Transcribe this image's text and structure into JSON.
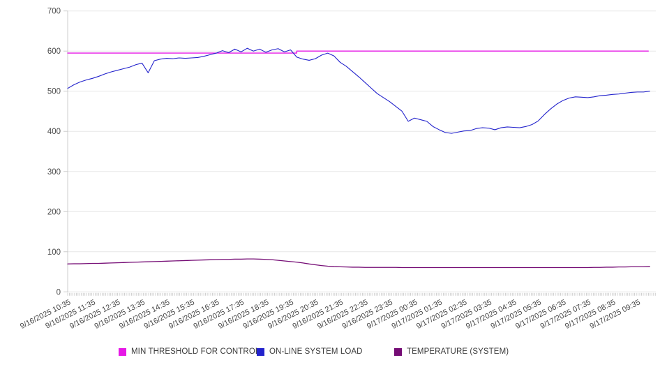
{
  "legend": {
    "threshold_label": "MIN THRESHOLD FOR CONTROL",
    "load_label": "ON-LINE SYSTEM LOAD",
    "temperature_label": "TEMPERATURE (SYSTEM)"
  },
  "colors": {
    "threshold": "#e618e6",
    "load": "#2222cc",
    "temperature": "#750c75",
    "gridline": "#e7e7e7",
    "axis_line": "#cccccc",
    "minor_tick": "#c6c6c6",
    "tick_text": "#4a4a4a"
  },
  "chart_data": {
    "type": "line",
    "title": "",
    "xlabel": "",
    "ylabel": "",
    "ylim": [
      0,
      700
    ],
    "grid": "horizontal",
    "legend_position": "bottom",
    "y_ticks": [
      0,
      100,
      200,
      300,
      400,
      500,
      600,
      700
    ],
    "x_ticks": [
      "9/16/2025 10:35",
      "9/16/2025 11:35",
      "9/16/2025 12:35",
      "9/16/2025 13:35",
      "9/16/2025 14:35",
      "9/16/2025 15:35",
      "9/16/2025 16:35",
      "9/16/2025 17:35",
      "9/16/2025 18:35",
      "9/16/2025 19:35",
      "9/16/2025 20:35",
      "9/16/2025 21:35",
      "9/16/2025 22:35",
      "9/16/2025 23:35",
      "9/17/2025 00:35",
      "9/17/2025 01:35",
      "9/17/2025 02:35",
      "9/17/2025 03:35",
      "9/17/2025 04:35",
      "9/17/2025 05:35",
      "9/17/2025 06:35",
      "9/17/2025 07:35",
      "9/17/2025 08:35",
      "9/17/2025 09:35"
    ],
    "sample_start": "9/16/2025 10:35",
    "sample_interval_minutes": 15,
    "series": [
      {
        "name": "MIN THRESHOLD FOR CONTROL",
        "color": "#e618e6",
        "step": true,
        "note": "constant 595 until 9/16/2025 19:35, then steps up to 600",
        "values": [
          595,
          595,
          595,
          595,
          595,
          595,
          595,
          595,
          595,
          595,
          595,
          595,
          595,
          595,
          595,
          595,
          595,
          595,
          595,
          595,
          595,
          595,
          595,
          595,
          595,
          595,
          595,
          595,
          595,
          595,
          595,
          595,
          595,
          595,
          595,
          595,
          595,
          600,
          600,
          600,
          600,
          600,
          600,
          600,
          600,
          600,
          600,
          600,
          600,
          600,
          600,
          600,
          600,
          600,
          600,
          600,
          600,
          600,
          600,
          600,
          600,
          600,
          600,
          600,
          600,
          600,
          600,
          600,
          600,
          600,
          600,
          600,
          600,
          600,
          600,
          600,
          600,
          600,
          600,
          600,
          600,
          600,
          600,
          600,
          600,
          600,
          600,
          600,
          600,
          600,
          600,
          600,
          600,
          600,
          600
        ]
      },
      {
        "name": "ON-LINE SYSTEM LOAD",
        "color": "#2222cc",
        "step": false,
        "values": [
          507,
          516,
          523,
          528,
          532,
          537,
          543,
          548,
          552,
          556,
          560,
          566,
          570,
          546,
          576,
          580,
          582,
          581,
          583,
          582,
          583,
          584,
          587,
          591,
          595,
          601,
          596,
          605,
          598,
          607,
          600,
          605,
          597,
          603,
          606,
          598,
          603,
          585,
          580,
          577,
          581,
          590,
          595,
          588,
          572,
          562,
          549,
          536,
          522,
          508,
          494,
          484,
          474,
          462,
          450,
          425,
          433,
          429,
          425,
          412,
          404,
          397,
          395,
          398,
          401,
          402,
          407,
          409,
          408,
          404,
          409,
          411,
          410,
          409,
          412,
          417,
          426,
          442,
          456,
          468,
          477,
          483,
          486,
          485,
          484,
          486,
          489,
          490,
          492,
          493,
          495,
          497,
          498,
          498,
          500
        ]
      },
      {
        "name": "TEMPERATURE (SYSTEM)",
        "color": "#750c75",
        "step": false,
        "values": [
          69.5,
          70,
          70,
          70.5,
          71,
          71,
          71.5,
          72,
          72.5,
          73,
          73.5,
          74,
          74.5,
          75,
          75.5,
          76,
          76.5,
          77,
          77.5,
          78,
          78.5,
          79,
          79.5,
          80,
          80.5,
          81,
          81,
          81.5,
          81.5,
          82,
          82,
          81.5,
          81,
          80,
          78.5,
          77,
          75.5,
          74,
          72,
          69.5,
          67.5,
          65.5,
          64,
          63,
          62.5,
          62,
          61.5,
          61.5,
          61,
          61,
          61,
          61,
          61,
          61,
          60.5,
          60.5,
          60.5,
          60.5,
          60.5,
          60.5,
          60.5,
          60.5,
          60.5,
          60.5,
          60.5,
          60.5,
          60.5,
          60.5,
          60.5,
          60.5,
          60.5,
          60.5,
          60.5,
          60.5,
          60.5,
          60.5,
          60.5,
          60.5,
          60.5,
          60.5,
          60.5,
          60.5,
          60.5,
          60.5,
          60.5,
          61,
          61,
          61.5,
          61.5,
          62,
          62,
          62.5,
          62.5,
          62.5,
          63
        ]
      }
    ]
  }
}
